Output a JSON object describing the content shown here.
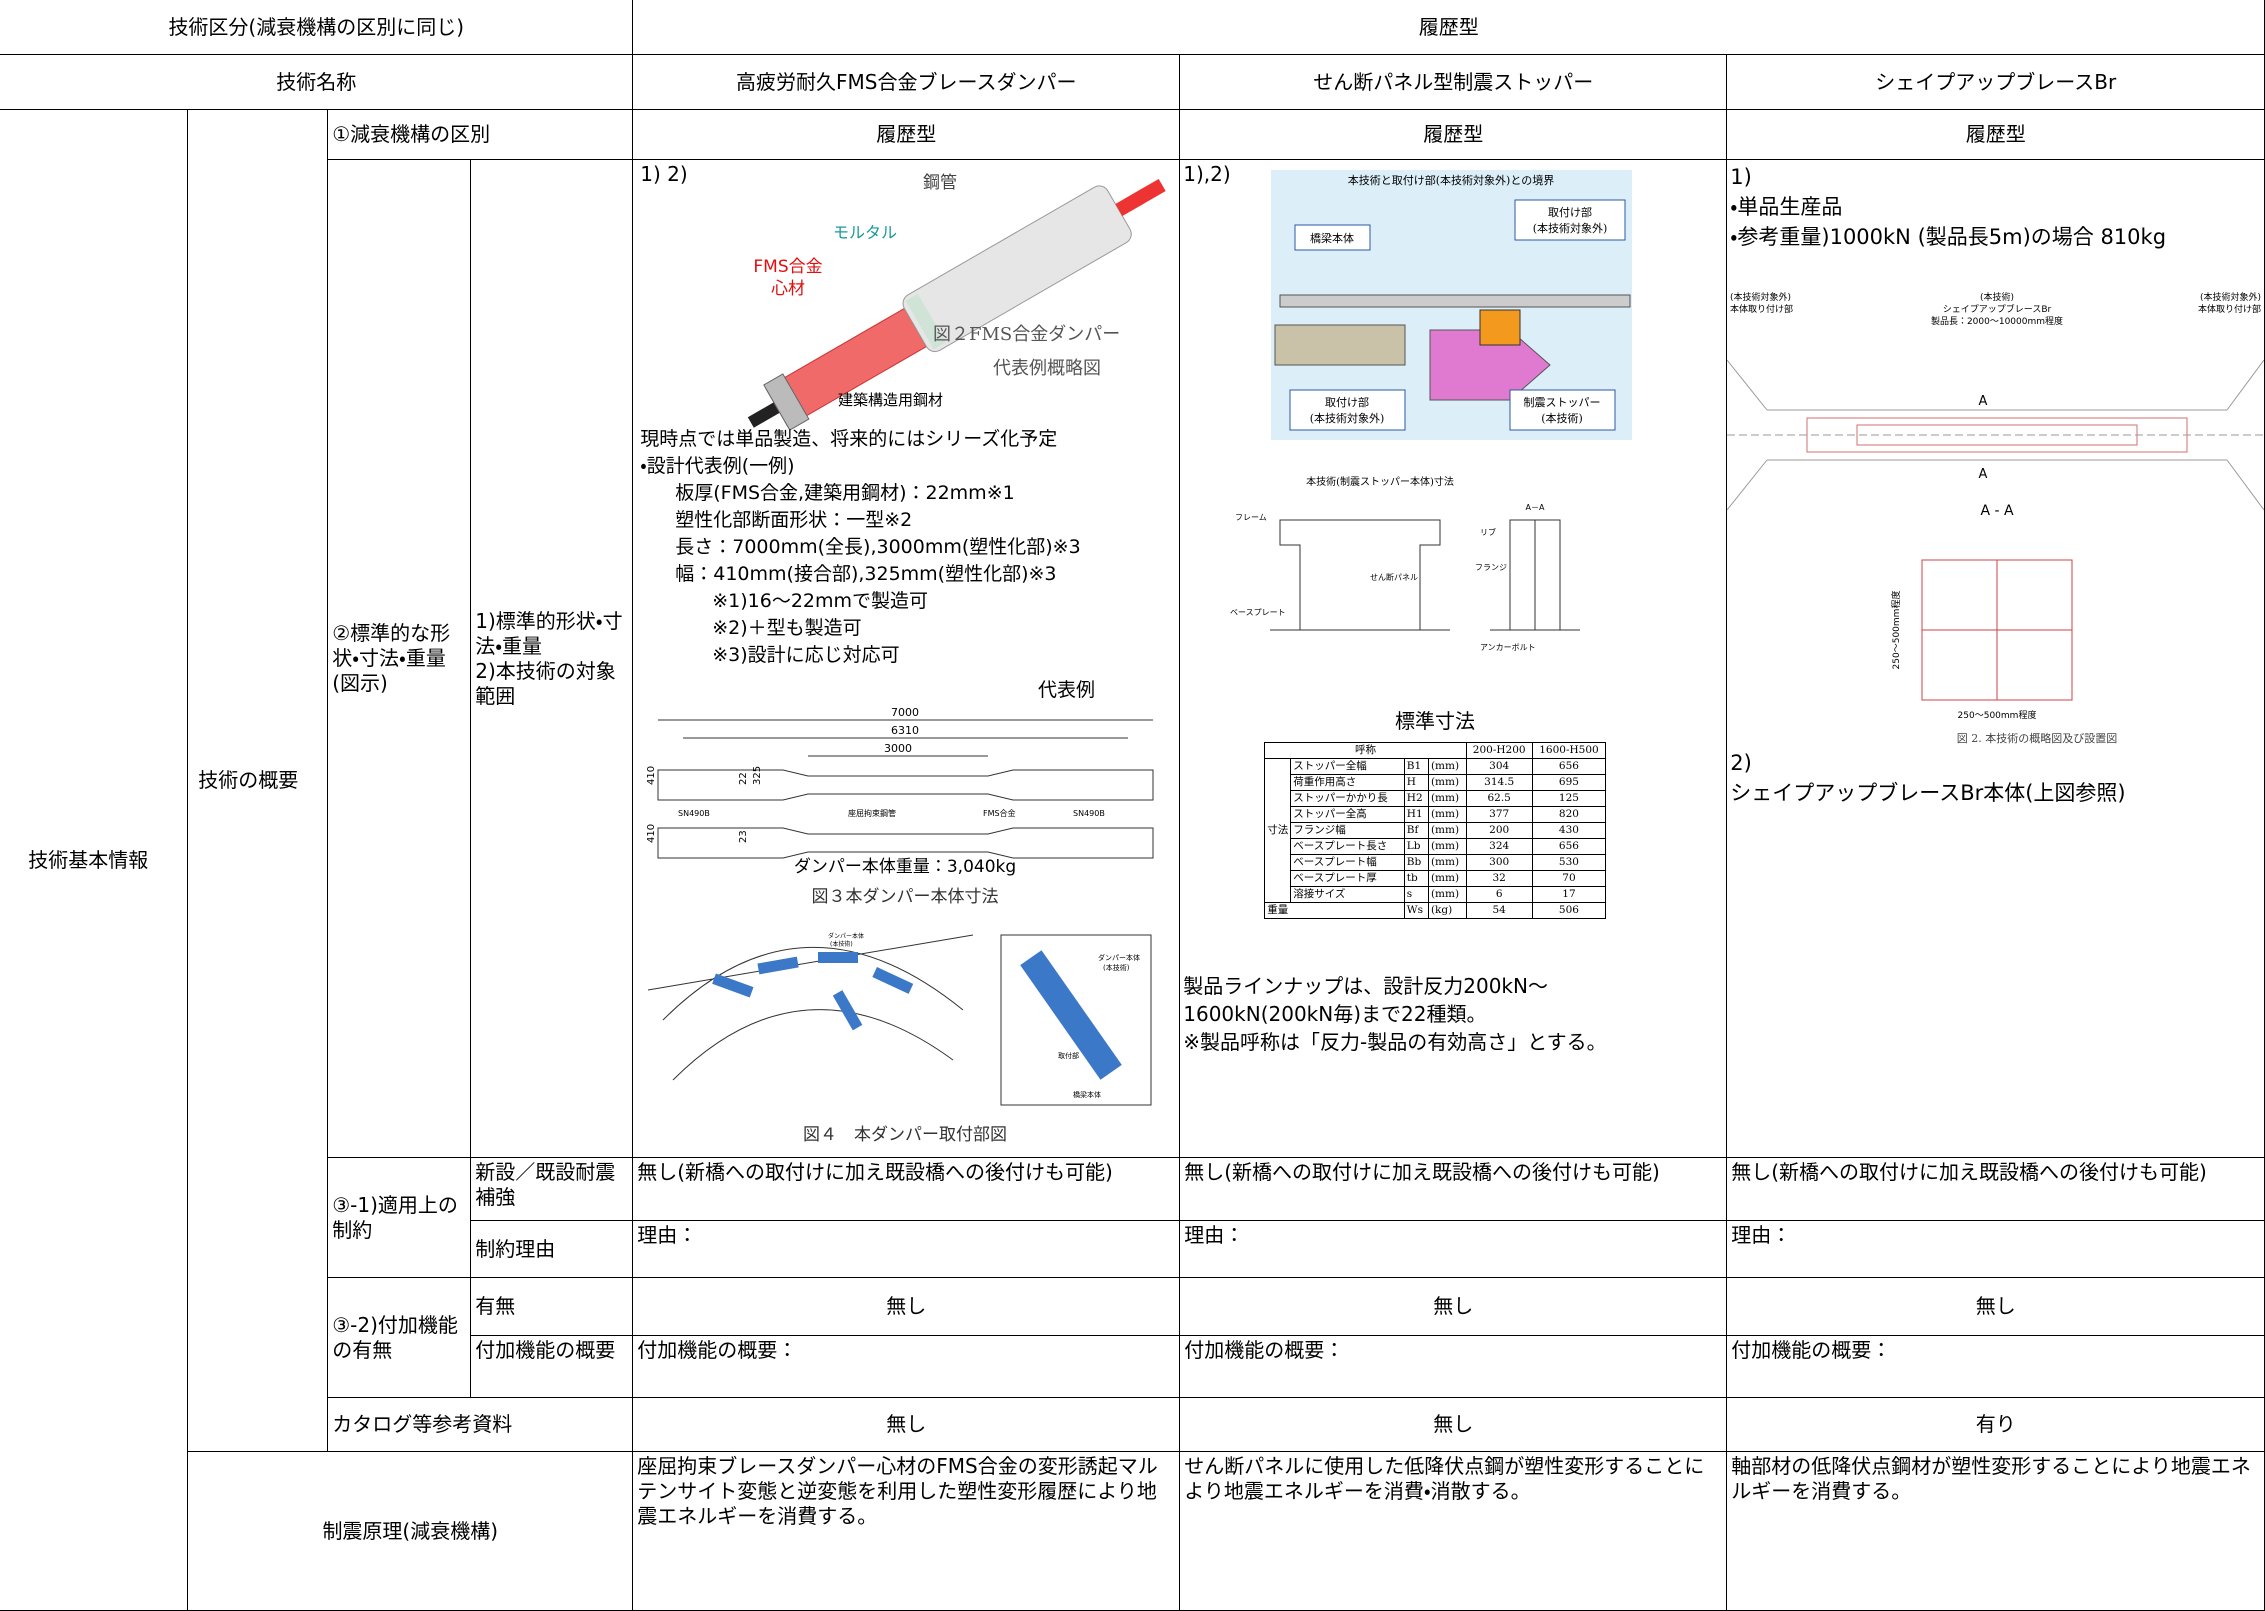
{
  "header": {
    "category_label": "技術区分(減衰機構の区別に同じ)",
    "category_value": "履歴型",
    "name_label": "技術名称",
    "names": [
      "高疲労耐久FMS合金ブレースダンパー",
      "せん断パネル型制震ストッパー",
      "シェイプアップブレースBr"
    ]
  },
  "labels": {
    "basic_info": "技術基本情報",
    "overview": "技術の概要",
    "damping_class": "①減衰機構の区別",
    "standard": "②標準的な形状・寸法・重量(図示)",
    "standard_sub": [
      "1)標準的形状・寸法・重量",
      "2)本技術の対象範囲"
    ],
    "constraint": "③-1)適用上の制約",
    "constraint_new": "新設／既設耐震補強",
    "constraint_reason": "制約理由",
    "addon": "③-2)付加機能の有無",
    "addon_has": "有無",
    "addon_summary": "付加機能の概要",
    "catalog": "カタログ等参考資料",
    "principle": "制震原理(減衰機構)"
  },
  "techs": [
    {
      "damping_class": "履歴型",
      "constraint_new": "無し(新橋への取付けに加え既設橋への後付けも可能)",
      "constraint_reason": "理由：",
      "addon_has": "無し",
      "addon_summary": "付加機能の概要：",
      "catalog": "無し",
      "principle": "座屈拘束ブレースダンパー心材のFMS合金の変形誘起マルテンサイト変態と逆変態を利用した塑性変形履歴により地震エネルギーを消費する。"
    },
    {
      "damping_class": "履歴型",
      "constraint_new": "無し(新橋への取付けに加え既設橋への後付けも可能)",
      "constraint_reason": "理由：",
      "addon_has": "無し",
      "addon_summary": "付加機能の概要：",
      "catalog": "無し",
      "principle": "せん断パネルに使用した低降伏点鋼が塑性変形することにより地震エネルギーを消費・消散する。"
    },
    {
      "damping_class": "履歴型",
      "constraint_new": "無し(新橋への取付けに加え既設橋への後付けも可能)",
      "constraint_reason": "理由：",
      "addon_has": "無し",
      "addon_summary": "付加機能の概要：",
      "catalog": "有り",
      "principle": "軸部材の低降伏点鋼材が塑性変形することにより地震エネルギーを消費する。"
    }
  ],
  "figure_a": {
    "ref": "1) 2)",
    "pipe": "鋼管",
    "mortar": "モルタル",
    "core": [
      "FMS合金",
      "心材"
    ],
    "steel": "建築構造用鋼材",
    "caption": [
      "図２FMS合金ダンパー",
      "代表例概略図"
    ],
    "notes": [
      "現時点では単品製造、将来的にはシリーズ化予定",
      "・設計代表例(一例)"
    ],
    "spec": [
      "板厚(FMS合金,建築用鋼材)：22mm※1",
      "塑性化部断面形状：一型※2",
      "長さ：7000mm(全長),3000mm(塑性化部)※3",
      "幅：410mm(接合部),325mm(塑性化部)※3"
    ],
    "footnotes": [
      "※1)16～22mmで製造可",
      "※2)＋型も製造可",
      "※3)設計に応じ対応可"
    ],
    "example": "代表例",
    "dims": {
      "total": "7000",
      "mid": "6310",
      "plastic": "3000",
      "width": "410",
      "width2": "410",
      "plastic_width": "325",
      "thick": "22",
      "thick2": "23",
      "sn1": "SN490B",
      "tube": "座屈拘束鋼管",
      "fms": "FMS合金",
      "sn2": "SN490B"
    },
    "weight": "ダンパー本体重量：3,040kg",
    "dim_caption": "図３本ダンパー本体寸法",
    "inset_damper": [
      "ダンパー本体",
      "(本技術)"
    ],
    "box_damper": [
      "ダンパー本体",
      "(本技術)"
    ],
    "box_mount": "取付部",
    "box_bridge": "橋梁本体",
    "install_caption": "図４　本ダンパー取付部図"
  },
  "figure_b": {
    "ref": "1),2)",
    "title": "本技術と取付け部(本技術対象外)との境界",
    "bridge": "橋梁本体",
    "mount_top": [
      "取付け部",
      "(本技術対象外)"
    ],
    "mount_bottom": [
      "取付け部",
      "(本技術対象外)"
    ],
    "stopper": [
      "制震ストッパー",
      "(本技術)"
    ],
    "dim_title": "本技術(制震ストッパー本体)寸法",
    "parts": {
      "frame": "フレーム",
      "panel": "せん断パネル",
      "base": "ベースプレート",
      "rib": "リブ",
      "flange": "フランジ",
      "anchor": "アンカーボルト",
      "section": "A－A"
    },
    "table_title": "標準寸法",
    "table": {
      "header": [
        "呼称",
        "200-H200",
        "1600-H500"
      ],
      "group": "寸法",
      "rows": [
        [
          "ストッパー全幅",
          "B1",
          "(mm)",
          "304",
          "656"
        ],
        [
          "荷重作用高さ",
          "H",
          "(mm)",
          "314.5",
          "695"
        ],
        [
          "ストッパーかかり長",
          "H2",
          "(mm)",
          "62.5",
          "125"
        ],
        [
          "ストッパー全高",
          "H1",
          "(mm)",
          "377",
          "820"
        ],
        [
          "フランジ幅",
          "Bf",
          "(mm)",
          "200",
          "430"
        ],
        [
          "ベースプレート長さ",
          "Lb",
          "(mm)",
          "324",
          "656"
        ],
        [
          "ベースプレート幅",
          "Bb",
          "(mm)",
          "300",
          "530"
        ],
        [
          "ベースプレート厚",
          "tb",
          "(mm)",
          "32",
          "70"
        ],
        [
          "溶接サイズ",
          "s",
          "(mm)",
          "6",
          "17"
        ]
      ],
      "weight": [
        "重量",
        "Ws",
        "(kg)",
        "54",
        "506"
      ]
    },
    "lineup": [
      "製品ラインナップは、設計反力200kN～",
      "1600kN(200kN毎)まで22種類。",
      "※製品呼称は「反力-製品の有効高さ」とする。"
    ]
  },
  "figure_c": {
    "ref": "1)",
    "items": [
      "・単品生産品",
      "・参考重量)1000kN (製品長5m)の場合  810kg"
    ],
    "left": [
      "(本技術対象外)",
      "本体取り付け部"
    ],
    "center": [
      "(本技術)",
      "シェイプアップブレースBr",
      "製品長：2000～10000mm程度"
    ],
    "right": [
      "(本技術対象外)",
      "本体取り付け部"
    ],
    "section_mark_top": "A",
    "section_mark_bottom": "A",
    "section": "A - A",
    "height_dim": "250～500mm程度",
    "width_dim": "250～500mm程度",
    "caption": "図 2. 本技術の概略図及び設置図",
    "ref2": "2)",
    "body": "シェイプアップブレースBr本体(上図参照)"
  }
}
